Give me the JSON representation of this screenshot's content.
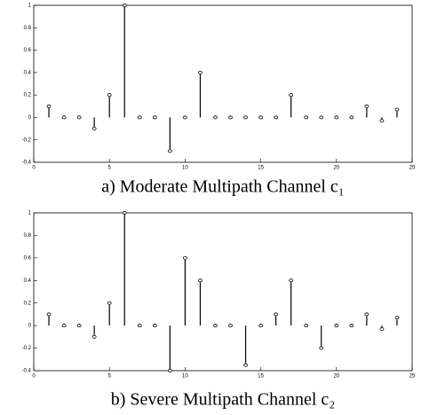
{
  "chart_data": [
    {
      "type": "stem",
      "title": "a) Moderate Multipath Channel c₁",
      "color": "#000000",
      "x": [
        1,
        2,
        3,
        4,
        5,
        6,
        7,
        8,
        9,
        10,
        11,
        12,
        13,
        14,
        15,
        16,
        17,
        18,
        19,
        20,
        21,
        22,
        23,
        24
      ],
      "values": [
        0.1,
        0,
        0,
        -0.1,
        0.2,
        1,
        0,
        0,
        -0.3,
        0,
        0.4,
        0,
        0,
        0,
        0,
        0,
        0.2,
        0,
        0,
        0,
        0,
        0.1,
        -0.03,
        0.07
      ],
      "xlim": [
        0,
        25
      ],
      "xticks": [
        0,
        5,
        10,
        15,
        20,
        25
      ],
      "ylim": [
        -0.4,
        1
      ],
      "yticks": [
        -0.4,
        -0.2,
        0,
        0.2,
        0.4,
        0.6,
        0.8,
        1
      ]
    },
    {
      "type": "stem",
      "title": "b) Severe Multipath Channel c₂",
      "color": "#000000",
      "x": [
        1,
        2,
        3,
        4,
        5,
        6,
        7,
        8,
        9,
        10,
        11,
        12,
        13,
        14,
        15,
        16,
        17,
        18,
        19,
        20,
        21,
        22,
        23,
        24
      ],
      "values": [
        0.1,
        0,
        0,
        -0.1,
        0.2,
        1,
        0,
        0,
        -0.4,
        0.6,
        0.4,
        0,
        0,
        -0.35,
        0,
        0.1,
        0.4,
        0,
        -0.2,
        0,
        0,
        0.1,
        -0.03,
        0.07
      ],
      "xlim": [
        0,
        25
      ],
      "xticks": [
        0,
        5,
        10,
        15,
        20,
        25
      ],
      "ylim": [
        -0.4,
        1
      ],
      "yticks": [
        -0.4,
        -0.2,
        0,
        0.2,
        0.4,
        0.6,
        0.8,
        1
      ]
    }
  ]
}
